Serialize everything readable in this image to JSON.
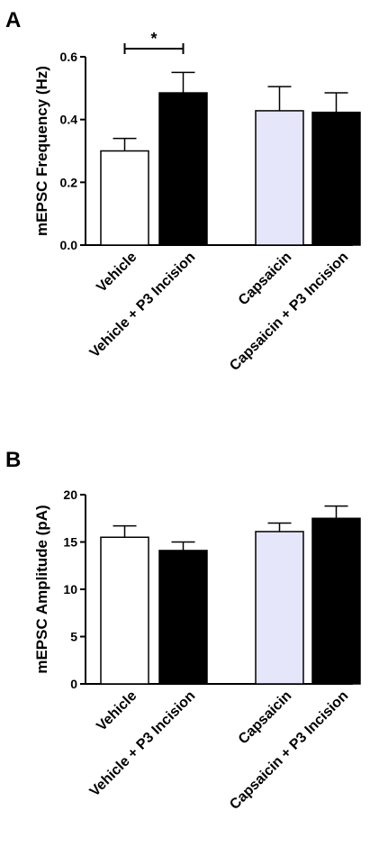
{
  "chart_data": [
    {
      "type": "bar",
      "panel": "A",
      "ylabel": "mEPSC Frequency (Hz)",
      "categories": [
        "Vehicle",
        "Vehicle + P3 Incision",
        "Capsaicin",
        "Capsaicin + P3 Incision"
      ],
      "values": [
        0.3,
        0.485,
        0.428,
        0.423
      ],
      "errors": [
        0.04,
        0.065,
        0.077,
        0.062
      ],
      "bar_colors": [
        "#ffffff",
        "#000000",
        "#e6e6fa",
        "#000000"
      ],
      "ylim": [
        0,
        0.6
      ],
      "yticks": [
        0.0,
        0.2,
        0.4,
        0.6
      ],
      "ytick_labels": [
        "0.0",
        "0.2",
        "0.4",
        "0.6"
      ],
      "significance": {
        "from": 0,
        "to": 1,
        "label": "*"
      }
    },
    {
      "type": "bar",
      "panel": "B",
      "ylabel": "mEPSC Amplitude (pA)",
      "categories": [
        "Vehicle",
        "Vehicle + P3 Incision",
        "Capsaicin",
        "Capsaicin + P3 Incision"
      ],
      "values": [
        15.5,
        14.1,
        16.1,
        17.5
      ],
      "errors": [
        1.2,
        0.9,
        0.9,
        1.3
      ],
      "bar_colors": [
        "#ffffff",
        "#000000",
        "#e6e6fa",
        "#000000"
      ],
      "ylim": [
        0,
        20
      ],
      "yticks": [
        0,
        5,
        10,
        15,
        20
      ],
      "ytick_labels": [
        "0",
        "5",
        "10",
        "15",
        "20"
      ]
    }
  ]
}
